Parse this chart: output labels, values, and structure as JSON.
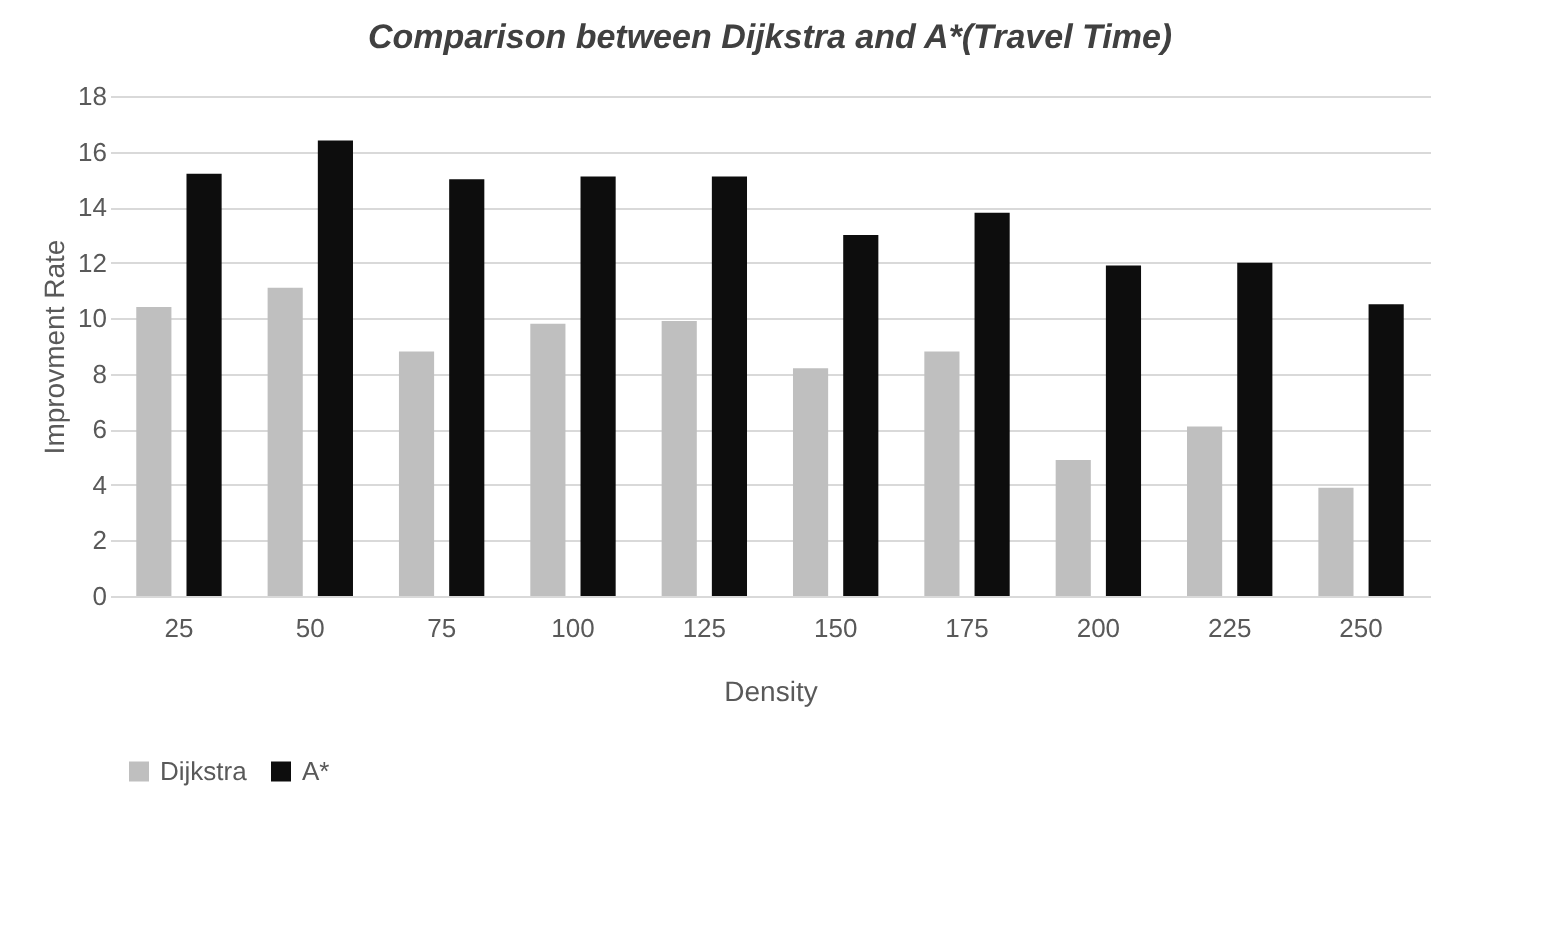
{
  "chart_data": {
    "type": "bar",
    "title": "Comparison  between Dijkstra and A*(Travel Time)",
    "xlabel": "Density",
    "ylabel": "Improvment Rate",
    "categories": [
      "25",
      "50",
      "75",
      "100",
      "125",
      "150",
      "175",
      "200",
      "225",
      "250"
    ],
    "series": [
      {
        "name": "Dijkstra",
        "color": "#bfbfbf",
        "values": [
          10.4,
          11.1,
          8.8,
          9.8,
          9.9,
          8.2,
          8.8,
          4.9,
          6.1,
          3.9
        ]
      },
      {
        "name": "A*",
        "color": "#0d0d0d",
        "values": [
          15.2,
          16.4,
          15.0,
          15.1,
          15.1,
          13.0,
          13.8,
          11.9,
          12.0,
          10.5
        ]
      }
    ],
    "ylim": [
      0,
      18
    ],
    "yticks": [
      0,
      2,
      4,
      6,
      8,
      10,
      12,
      14,
      16,
      18
    ],
    "grid": "y",
    "legend": "bottom"
  }
}
